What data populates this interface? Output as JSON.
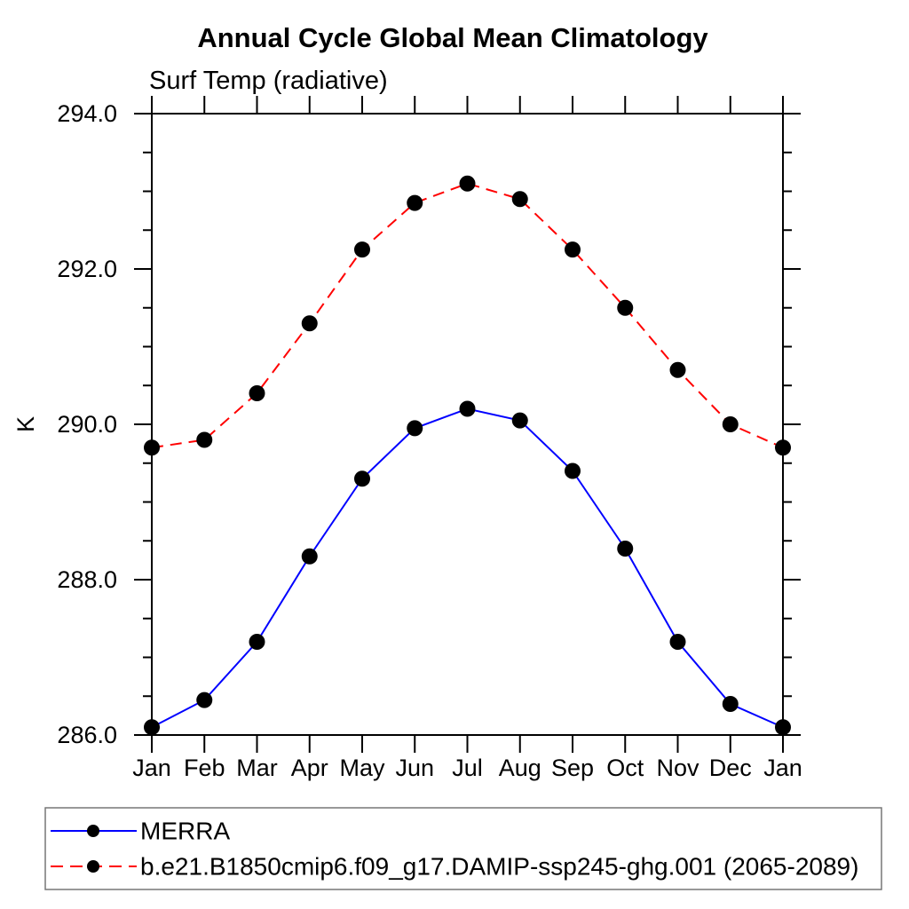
{
  "chart_data": {
    "type": "line",
    "title": "Annual Cycle Global Mean Climatology",
    "subtitle": "Surf Temp (radiative)",
    "ylabel": "K",
    "categories": [
      "Jan",
      "Feb",
      "Mar",
      "Apr",
      "May",
      "Jun",
      "Jul",
      "Aug",
      "Sep",
      "Oct",
      "Nov",
      "Dec",
      "Jan"
    ],
    "ylim": [
      286.0,
      294.0
    ],
    "ytick_major": [
      294.0,
      292.0,
      290.0,
      288.0,
      286.0
    ],
    "ytick_major_labels": [
      "294.0",
      "292.0",
      "290.0",
      "288.0",
      "286.0"
    ],
    "ytick_minor_step": 0.5,
    "grid": false,
    "legend_position": "bottom-left-box",
    "axis_color": "#000000",
    "marker_color": "#000000",
    "series": [
      {
        "name": "MERRA",
        "color": "#0000ff",
        "line_style": "solid",
        "marker": "filled-circle",
        "values": [
          286.1,
          286.45,
          287.2,
          288.3,
          289.3,
          289.95,
          290.2,
          290.05,
          289.4,
          288.4,
          287.2,
          286.4,
          286.1
        ]
      },
      {
        "name": "b.e21.B1850cmip6.f09_g17.DAMIP-ssp245-ghg.001 (2065-2089)",
        "color": "#ff0000",
        "line_style": "dashed",
        "marker": "filled-circle",
        "values": [
          289.7,
          289.8,
          290.4,
          291.3,
          292.25,
          292.85,
          293.1,
          292.9,
          292.25,
          291.5,
          290.7,
          290.0,
          289.7
        ]
      }
    ]
  }
}
